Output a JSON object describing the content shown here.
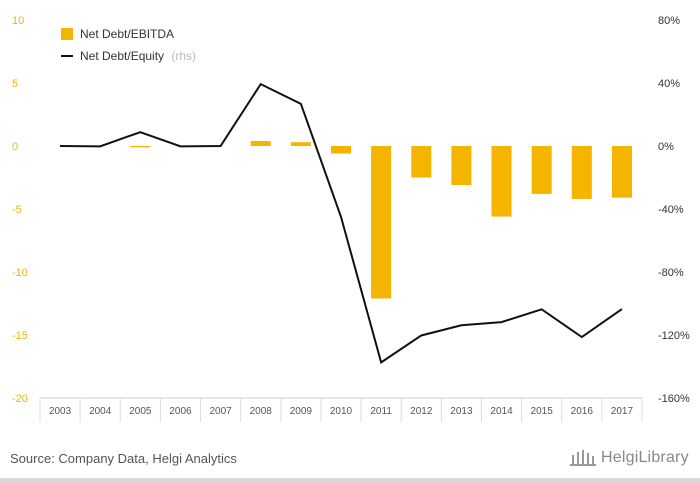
{
  "chart_data": {
    "type": "bar",
    "categories": [
      "2003",
      "2004",
      "2005",
      "2006",
      "2007",
      "2008",
      "2009",
      "2010",
      "2011",
      "2012",
      "2013",
      "2014",
      "2015",
      "2016",
      "2017"
    ],
    "series": [
      {
        "name": "Net Debt/EBITDA",
        "type": "bar",
        "axis": "left",
        "color": "#f5b400",
        "values": [
          0.0,
          0.0,
          -0.1,
          0.0,
          0.0,
          0.4,
          0.3,
          -0.6,
          -12.1,
          -2.5,
          -3.1,
          -5.6,
          -3.8,
          -4.2,
          -4.1
        ]
      },
      {
        "name": "Net Debt/Equity",
        "name_suffix": "(rhs)",
        "type": "line",
        "axis": "right",
        "color": "#111111",
        "values": [
          0.0,
          -0.2,
          8.8,
          -0.2,
          0.0,
          39.3,
          26.8,
          -45.0,
          -137.4,
          -120.3,
          -113.8,
          -111.8,
          -103.7,
          -121.3,
          -103.5
        ]
      }
    ],
    "y_left": {
      "min": -20,
      "max": 10,
      "ticks": [
        "10",
        "5",
        "0",
        "-5",
        "-10",
        "-15",
        "-20"
      ]
    },
    "y_right": {
      "min": -160,
      "max": 80,
      "ticks": [
        "80%",
        "40%",
        "0%",
        "-40%",
        "-80%",
        "-120%",
        "-160%"
      ]
    },
    "legend": {
      "position": "top-left"
    },
    "grid": false
  },
  "footer": {
    "source": "Source: Company Data, Helgi Analytics",
    "logo_text": "HelgiLibrary"
  },
  "colors": {
    "bar": "#f5b400",
    "line": "#111111",
    "axis_left": "#f0b400"
  }
}
